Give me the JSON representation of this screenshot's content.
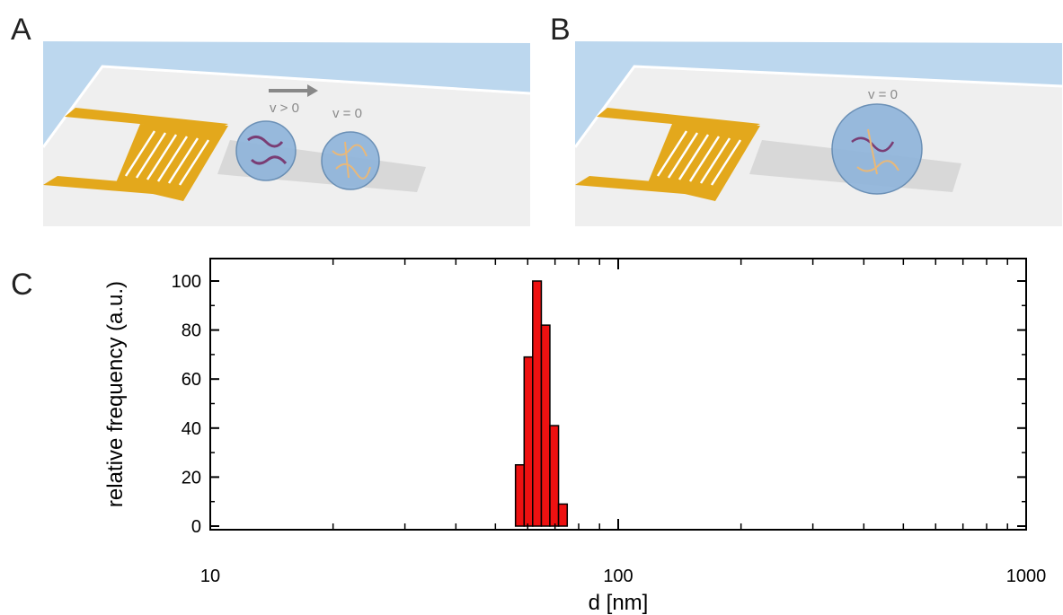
{
  "panels": {
    "a": {
      "letter": "A",
      "moving_label": "v > 0",
      "still_label": "v = 0"
    },
    "b": {
      "letter": "B",
      "still_label": "v = 0"
    },
    "c": {
      "letter": "C"
    }
  },
  "colors": {
    "water": "#bcd7ee",
    "substrate": "#f0f0f0",
    "electrode": "#e3a81c",
    "vesicle": "#7fa8d2",
    "bar_fill": "#ee1111",
    "arrow": "#888888"
  },
  "icons": [
    "arrow-right-icon",
    "interdigital-transducer-icon",
    "vesicle-icon"
  ],
  "chart_data": {
    "type": "bar",
    "xlabel": "d [nm]",
    "ylabel": "relative frequency (a.u.)",
    "x_scale": "log",
    "xlim": [
      10,
      1000
    ],
    "ylim": [
      0,
      110
    ],
    "x_ticks_major": [
      10,
      100,
      1000
    ],
    "x_tick_labels": [
      "10",
      "100",
      "1000"
    ],
    "y_ticks": [
      0,
      20,
      40,
      60,
      80,
      100
    ],
    "y_tick_labels": [
      "0",
      "20",
      "40",
      "60",
      "80",
      "100"
    ],
    "grid": false,
    "bins": [
      {
        "x_start": 56.0,
        "x_end": 58.8,
        "value": 25
      },
      {
        "x_start": 58.8,
        "x_end": 61.7,
        "value": 69
      },
      {
        "x_start": 61.7,
        "x_end": 64.8,
        "value": 100
      },
      {
        "x_start": 64.8,
        "x_end": 68.0,
        "value": 82
      },
      {
        "x_start": 68.0,
        "x_end": 71.4,
        "value": 41
      },
      {
        "x_start": 71.4,
        "x_end": 75.0,
        "value": 9
      }
    ]
  }
}
